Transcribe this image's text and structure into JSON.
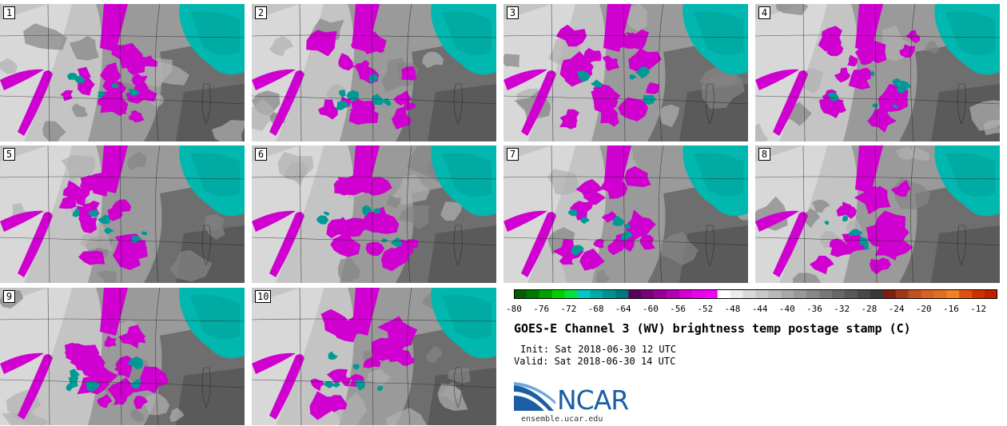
{
  "panels": [
    {
      "label": "1"
    },
    {
      "label": "2"
    },
    {
      "label": "3"
    },
    {
      "label": "4"
    },
    {
      "label": "5"
    },
    {
      "label": "6"
    },
    {
      "label": "7"
    },
    {
      "label": "8"
    },
    {
      "label": "9"
    },
    {
      "label": "10"
    }
  ],
  "colorbar": {
    "ticks": [
      "-80",
      "-76",
      "-72",
      "-68",
      "-64",
      "-60",
      "-56",
      "-52",
      "-48",
      "-44",
      "-40",
      "-36",
      "-32",
      "-28",
      "-24",
      "-20",
      "-16",
      "-12"
    ],
    "colors": [
      "#005d00",
      "#007800",
      "#00a000",
      "#00d000",
      "#00e040",
      "#00c8c8",
      "#00a8a8",
      "#009090",
      "#007878",
      "#5a005a",
      "#780078",
      "#960096",
      "#b400b4",
      "#d200d2",
      "#e800e8",
      "#f400f4",
      "#ffffff",
      "#ececec",
      "#d8d8d8",
      "#c8c8c8",
      "#b8b8b8",
      "#a8a8a8",
      "#989898",
      "#888888",
      "#787878",
      "#686868",
      "#585858",
      "#484848",
      "#383838",
      "#7a2010",
      "#a03818",
      "#c05020",
      "#d86020",
      "#e07020",
      "#f08020",
      "#e05010",
      "#d03000",
      "#c02000"
    ]
  },
  "title": "GOES-E Channel 3 (WV) brightness temp postage stamp (C)",
  "init": "Init: Sat 2018-06-30 12 UTC",
  "valid": "Valid: Sat 2018-06-30 14 UTC",
  "logo": {
    "text": "NCAR",
    "site": "ensemble.ucar.edu",
    "brand_color": "#1b5ea3"
  },
  "palette": {
    "magenta": "#d000d0",
    "teal": "#00b8b0",
    "darkteal": "#008080"
  }
}
